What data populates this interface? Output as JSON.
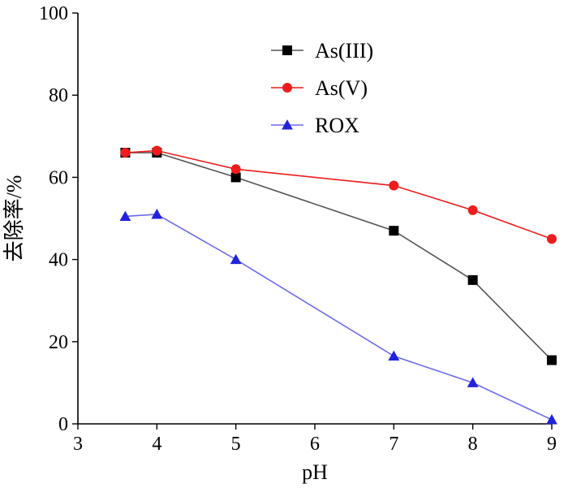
{
  "chart_data": {
    "type": "line",
    "title": "",
    "xlabel": "pH",
    "ylabel": "去除率/%",
    "xlim": [
      3,
      9
    ],
    "ylim": [
      0,
      100
    ],
    "xticks": [
      3,
      4,
      5,
      6,
      7,
      8,
      9
    ],
    "yticks": [
      0,
      20,
      40,
      60,
      80,
      100
    ],
    "grid": false,
    "legend_position": "top-right",
    "series": [
      {
        "name": "As(III)",
        "marker": "square",
        "color": "#000000",
        "line_color": "#555555",
        "x": [
          3.6,
          4,
          5,
          7,
          8,
          9
        ],
        "y": [
          66,
          66,
          60,
          47,
          35,
          15.5
        ]
      },
      {
        "name": "As(V)",
        "marker": "circle",
        "color": "#ee1c1c",
        "line_color": "#ee1c1c",
        "x": [
          3.6,
          4,
          5,
          7,
          8,
          9
        ],
        "y": [
          66,
          66.5,
          62,
          58,
          52,
          45
        ]
      },
      {
        "name": "ROX",
        "marker": "triangle",
        "color": "#2222dd",
        "line_color": "#6b6bee",
        "x": [
          3.6,
          4,
          5,
          7,
          8,
          9
        ],
        "y": [
          50.5,
          51,
          40,
          16.5,
          10,
          1
        ]
      }
    ]
  }
}
